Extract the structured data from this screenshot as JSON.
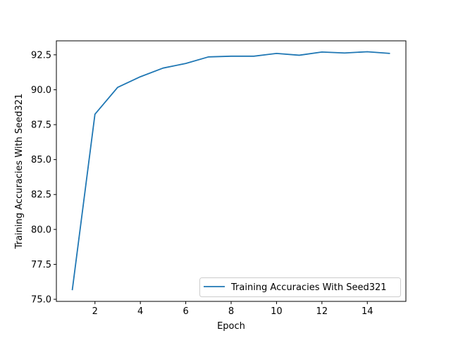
{
  "chart_data": {
    "type": "line",
    "title": "",
    "xlabel": "Epoch",
    "ylabel": "Training Accuracies With Seed321",
    "xlim": [
      0.3,
      15.7
    ],
    "ylim": [
      74.85,
      93.5
    ],
    "xticks": [
      2,
      4,
      6,
      8,
      10,
      12,
      14
    ],
    "yticks": [
      75.0,
      77.5,
      80.0,
      82.5,
      85.0,
      87.5,
      90.0,
      92.5
    ],
    "ytick_labels": [
      "75.0",
      "77.5",
      "80.0",
      "82.5",
      "85.0",
      "87.5",
      "90.0",
      "92.5"
    ],
    "grid": false,
    "legend_position": "lower right",
    "series": [
      {
        "name": "Training Accuracies With Seed321",
        "color": "#1f77b4",
        "x": [
          1,
          2,
          3,
          4,
          5,
          6,
          7,
          8,
          9,
          10,
          11,
          12,
          13,
          14,
          15
        ],
        "y": [
          75.65,
          88.25,
          90.17,
          90.93,
          91.55,
          91.88,
          92.35,
          92.4,
          92.4,
          92.6,
          92.47,
          92.7,
          92.63,
          92.72,
          92.6
        ]
      }
    ]
  }
}
